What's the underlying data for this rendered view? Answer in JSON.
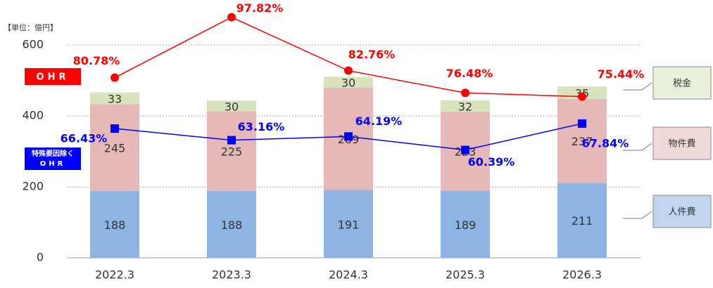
{
  "chart_data": {
    "type": "bar",
    "unit_label": "【単位：億円】",
    "categories": [
      "2022.3",
      "2023.3",
      "2024.3",
      "2025.3",
      "2026.3"
    ],
    "stacked": true,
    "series": [
      {
        "name": "人件費",
        "color": "#8db4e2",
        "values": [
          188,
          188,
          191,
          189,
          211
        ]
      },
      {
        "name": "物件費",
        "color": "#e6b9b8",
        "values": [
          245,
          225,
          289,
          223,
          237
        ]
      },
      {
        "name": "税金",
        "color": "#d7e4bd",
        "values": [
          33,
          30,
          30,
          32,
          35
        ]
      },
      {
        "name": "OHR",
        "type": "line",
        "axis": "y2",
        "color": "#ff0000",
        "marker": "circle",
        "values": [
          80.78,
          97.82,
          82.76,
          76.48,
          75.44
        ],
        "value_labels": [
          "80.78%",
          "97.82%",
          "82.76%",
          "76.48%",
          "75.44%"
        ]
      },
      {
        "name": "特殊要因除く OHR",
        "type": "line",
        "axis": "y2",
        "color": "#0000ff",
        "marker": "square",
        "values": [
          66.43,
          63.16,
          64.19,
          60.39,
          67.84
        ],
        "value_labels": [
          "66.43%",
          "63.16%",
          "64.19%",
          "60.39%",
          "67.84%"
        ]
      }
    ],
    "annotations": [
      "OHR",
      "特殊要因除く",
      "OHR"
    ],
    "ylim": [
      0,
      600
    ],
    "yticks": [
      0,
      200,
      400,
      600
    ],
    "y2lim": [
      30,
      90
    ],
    "grid": true
  }
}
